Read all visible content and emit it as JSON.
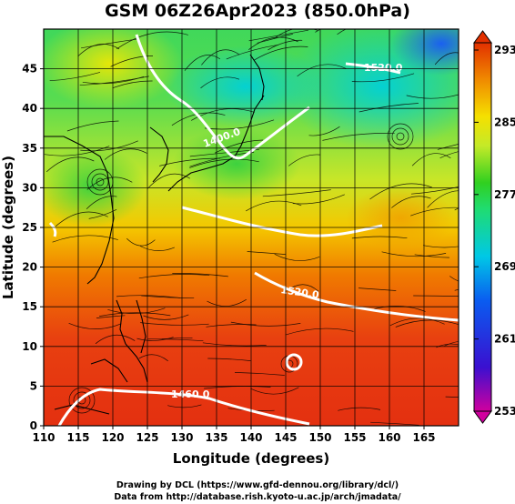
{
  "title": "GSM 06Z26Apr2023 (850.0hPa)",
  "x_axis": {
    "label": "Longitude (degrees)",
    "ticks": [
      "110",
      "115",
      "120",
      "125",
      "130",
      "135",
      "140",
      "145",
      "150",
      "155",
      "160",
      "165"
    ],
    "range": [
      110,
      170
    ]
  },
  "y_axis": {
    "label": "Latitude  (degrees)",
    "ticks": [
      "0",
      "5",
      "10",
      "15",
      "20",
      "25",
      "30",
      "35",
      "40",
      "45"
    ],
    "range": [
      0,
      50
    ]
  },
  "colorbar": {
    "labels": [
      "293",
      "285",
      "277",
      "269",
      "261",
      "253"
    ],
    "range": [
      253,
      293
    ],
    "colors": [
      "#d0009e",
      "#3a10d0",
      "#0a5cf0",
      "#00c8e6",
      "#20dc70",
      "#30d020",
      "#c4ea28",
      "#f5e000",
      "#f08a00",
      "#e23000"
    ]
  },
  "contours": [
    {
      "label": "1400.0"
    },
    {
      "label": "1520.0"
    },
    {
      "label": "1460.0"
    },
    {
      "label": "1520.0"
    }
  ],
  "credits": {
    "line1": "Drawing by DCL (https://www.gfd-dennou.org/library/dcl/)",
    "line2": "Data from http://database.rish.kyoto-u.ac.jp/arch/jmadata/"
  }
}
